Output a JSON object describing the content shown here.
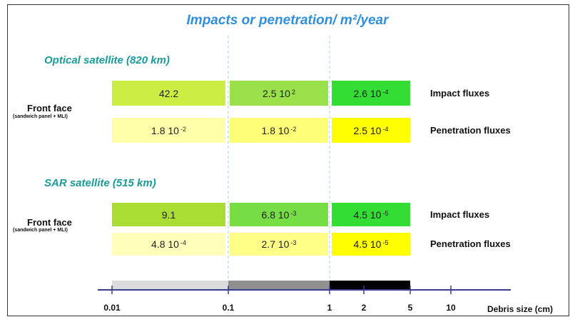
{
  "title": "Impacts or penetration/ m²/year",
  "sections": [
    {
      "name": "Optical satellite (820 km)",
      "face": "Front face",
      "face_note": "(sandwich panel + MLI)",
      "rows": [
        {
          "label": "Impact fluxes",
          "cells": [
            {
              "text": "42.2",
              "color": "#ccee44"
            },
            {
              "text": "2.5 10",
              "sup": "2",
              "color": "#99e04a"
            },
            {
              "text": "2.6 10",
              "sup": "-4",
              "color": "#33dd33"
            }
          ]
        },
        {
          "label": "Penetration fluxes",
          "cells": [
            {
              "text": "1.8 10",
              "sup": "-2",
              "color": "#ffffaa"
            },
            {
              "text": "1.8 10",
              "sup": "-2",
              "color": "#ffff77"
            },
            {
              "text": "2.5 10",
              "sup": "-4",
              "color": "#ffff00"
            }
          ]
        }
      ]
    },
    {
      "name": "SAR satellite (515 km)",
      "face": "Front face",
      "face_note": "(sandwich panel + MLI)",
      "rows": [
        {
          "label": "Impact fluxes",
          "cells": [
            {
              "text": "9.1",
              "color": "#aadd33"
            },
            {
              "text": "6.8 10",
              "sup": "-3",
              "color": "#77dd44"
            },
            {
              "text": "4.5 10",
              "sup": "-5",
              "color": "#33dd33"
            }
          ]
        },
        {
          "label": "Penetration fluxes",
          "cells": [
            {
              "text": "4.8 10",
              "sup": "-4",
              "color": "#ffffbb"
            },
            {
              "text": "2.7 10",
              "sup": "-3",
              "color": "#ffff88"
            },
            {
              "text": "4.5 10",
              "sup": "-5",
              "color": "#ffff00"
            }
          ]
        }
      ]
    }
  ],
  "axis": {
    "label": "Debris size (cm)",
    "ticks": [
      "0.01",
      "0.1",
      "1",
      "2",
      "5",
      "10"
    ]
  }
}
